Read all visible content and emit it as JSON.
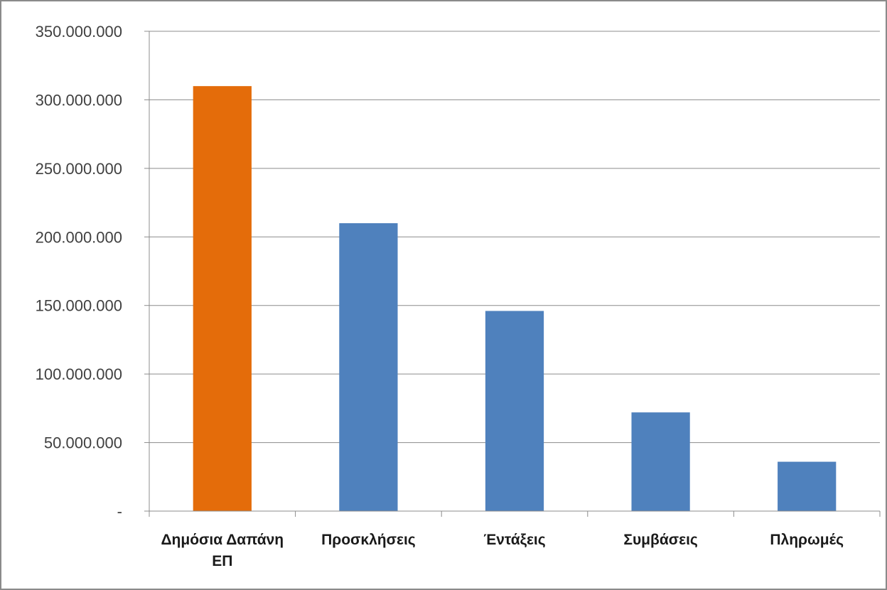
{
  "chart_data": {
    "type": "bar",
    "categories": [
      [
        "Δημόσια Δαπάνη",
        "ΕΠ"
      ],
      [
        "Προσκλήσεις"
      ],
      [
        "Έντάξεις"
      ],
      [
        "Συμβάσεις"
      ],
      [
        "Πληρωμές"
      ]
    ],
    "values": [
      310000000,
      210000000,
      146000000,
      72000000,
      36000000
    ],
    "bar_colors": [
      "#E46C0A",
      "#4F81BD",
      "#4F81BD",
      "#4F81BD",
      "#4F81BD"
    ],
    "ylim": [
      0,
      350000000
    ],
    "yticks": [
      0,
      50000000,
      100000000,
      150000000,
      200000000,
      250000000,
      300000000,
      350000000
    ],
    "ytick_labels": [
      "-",
      "50.000.000",
      "100.000.000",
      "150.000.000",
      "200.000.000",
      "250.000.000",
      "300.000.000",
      "350.000.000"
    ],
    "grid": true,
    "legend": "none",
    "title": "",
    "xlabel": "",
    "ylabel": ""
  }
}
